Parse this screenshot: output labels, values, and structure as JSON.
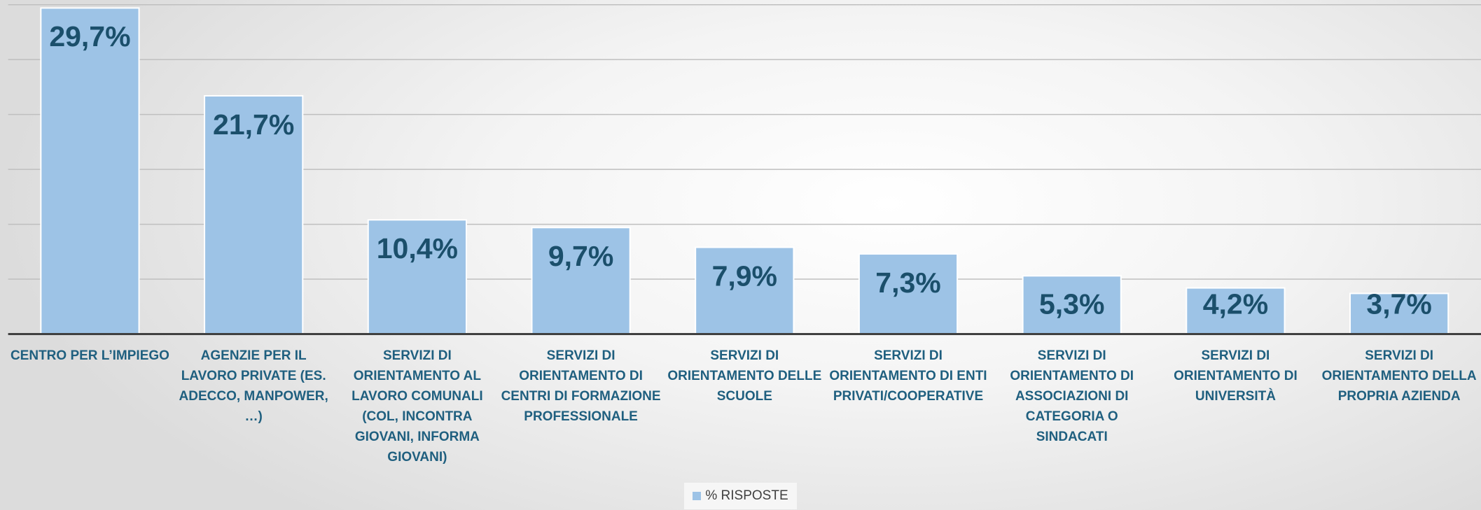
{
  "chart_data": {
    "type": "bar",
    "categories": [
      "CENTRO PER L’IMPIEGO",
      "AGENZIE PER IL LAVORO PRIVATE (ES. ADECCO, MANPOWER, …)",
      "SERVIZI DI ORIENTAMENTO AL LAVORO COMUNALI (COL, INCONTRA GIOVANI, INFORMA GIOVANI)",
      "SERVIZI DI ORIENTAMENTO DI CENTRI DI FORMAZIONE PROFESSIONALE",
      "SERVIZI DI ORIENTAMENTO DELLE SCUOLE",
      "SERVIZI DI ORIENTAMENTO DI ENTI PRIVATI/COOPERATIVE",
      "SERVIZI DI ORIENTAMENTO DI ASSOCIAZIONI DI CATEGORIA O SINDACATI",
      "SERVIZI DI ORIENTAMENTO DI UNIVERSITÀ",
      "SERVIZI DI ORIENTAMENTO DELLA PROPRIA AZIENDA"
    ],
    "series": [
      {
        "name": "% RISPOSTE",
        "color": "#9dc3e6",
        "values": [
          29.7,
          21.7,
          10.4,
          9.7,
          7.9,
          7.3,
          5.3,
          4.2,
          3.7
        ],
        "value_labels": [
          "29,7%",
          "21,7%",
          "10,4%",
          "9,7%",
          "7,9%",
          "7,3%",
          "5,3%",
          "4,2%",
          "3,7%"
        ]
      }
    ],
    "ylim": [
      0,
      30
    ],
    "yticks": [
      0,
      5,
      10,
      15,
      20,
      25,
      30
    ],
    "grid": true,
    "legend": "bottom"
  }
}
